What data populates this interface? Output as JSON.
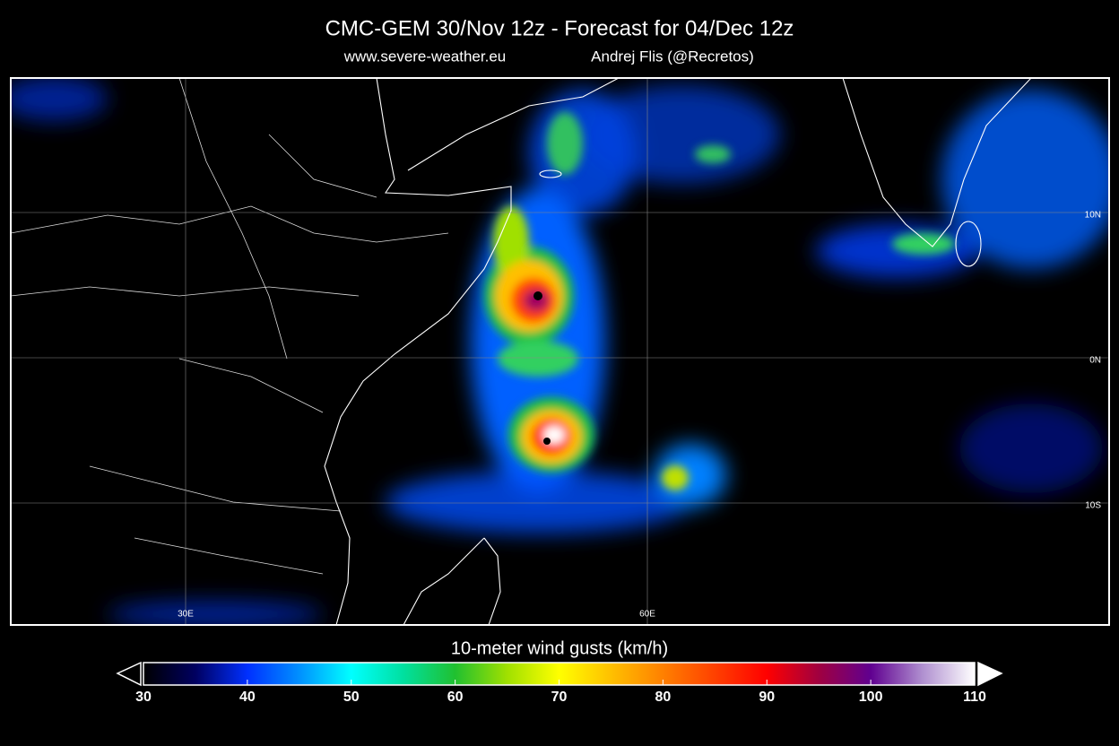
{
  "header": {
    "title": "CMC-GEM 30/Nov 12z - Forecast for 04/Dec 12z",
    "website": "www.severe-weather.eu",
    "author": "Andrej Flis (@Recretos)"
  },
  "map": {
    "lat_labels": [
      "10N",
      "0N",
      "10S"
    ],
    "lon_labels": [
      "30E",
      "60E"
    ]
  },
  "colorbar": {
    "label": "10-meter wind gusts (km/h)",
    "lim": [
      30,
      110
    ],
    "ticks": [
      30,
      40,
      50,
      60,
      70,
      80,
      90,
      100,
      110
    ]
  }
}
